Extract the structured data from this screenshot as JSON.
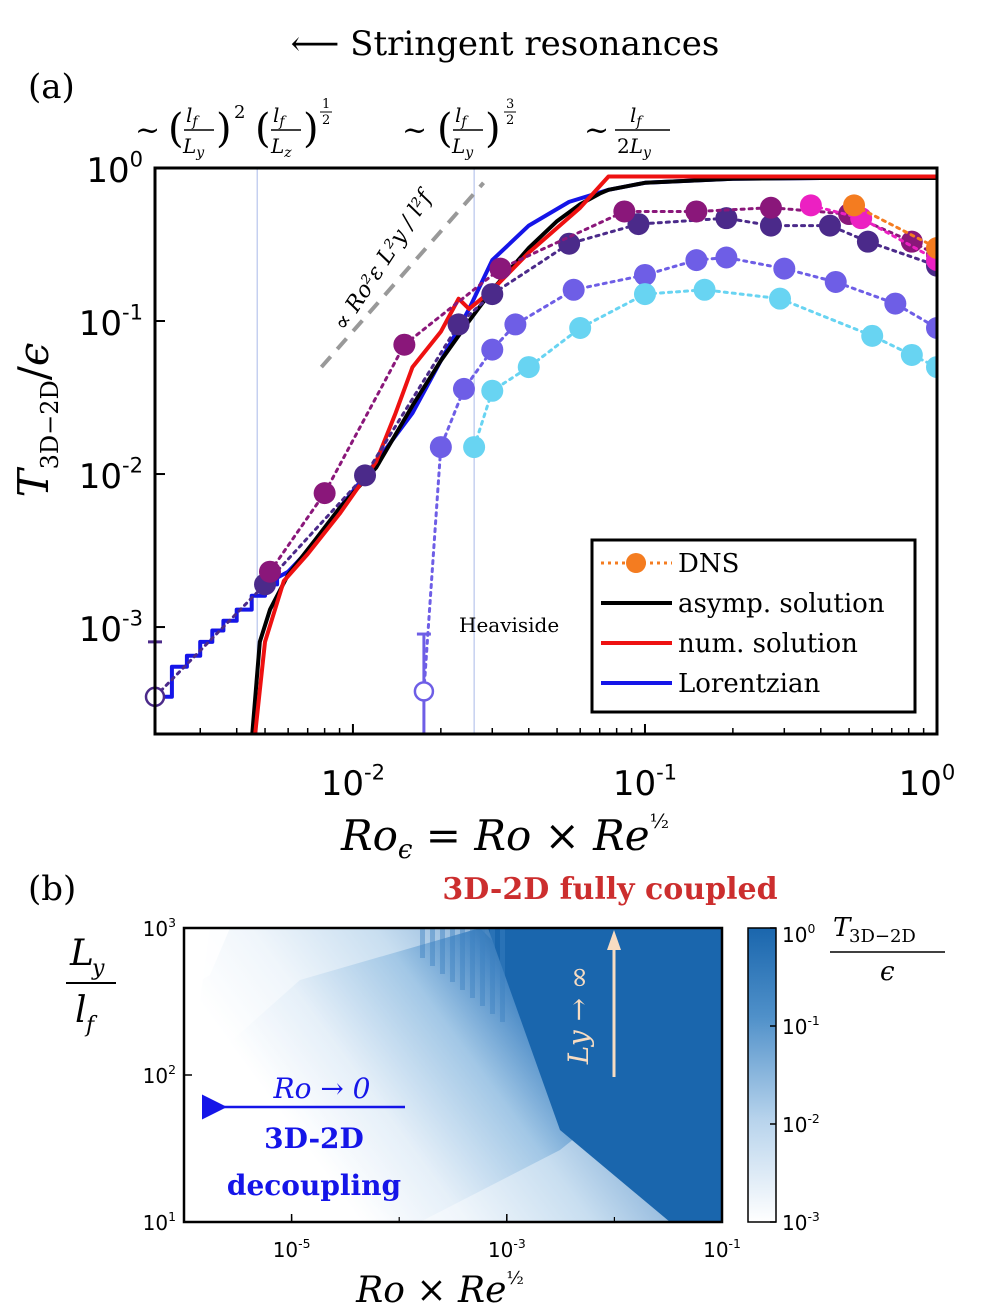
{
  "figure": {
    "header": "⟵ Stringent resonances",
    "panel_a_label": "(a)",
    "panel_b_label": "(b)",
    "scaling_annotations": [
      "~ (lf/Ly)² (lf/Lz)^½",
      "~ (lf/Ly)^3/2",
      "~ lf/2Ly"
    ]
  },
  "chart_data": [
    {
      "id": "a",
      "type": "line",
      "xlabel": "Roε = Ro × Re^½",
      "ylabel": "T3D−2D/ε",
      "xscale": "log",
      "yscale": "log",
      "xlim": [
        0.0021,
        1
      ],
      "ylim": [
        0.0002,
        1
      ],
      "x_ticks": [
        "10-2",
        "10-1",
        "100"
      ],
      "y_ticks": [
        "10-3",
        "10-2",
        "10-1",
        "100"
      ],
      "slope_label": "∝ Ro²ε L²y / l²f",
      "heaviside_label": "Heaviside",
      "legend_position": "lower-right",
      "legend": [
        {
          "label": "DNS",
          "color": "#f47c20",
          "style": "dotted-marker"
        },
        {
          "label": "asymp. solution",
          "color": "#000000",
          "style": "solid"
        },
        {
          "label": "num. solution",
          "color": "#ee1111",
          "style": "solid"
        },
        {
          "label": "Lorentzian",
          "color": "#1515e8",
          "style": "solid"
        }
      ],
      "vertical_lines": [
        0.0047,
        0.026
      ],
      "curves": [
        {
          "name": "Lorentzian",
          "color": "#1515e8",
          "points": [
            [
              0.0021,
              0.00035
            ],
            [
              0.0024,
              0.00035
            ],
            [
              0.0024,
              0.00055
            ],
            [
              0.0027,
              0.00055
            ],
            [
              0.0027,
              0.00065
            ],
            [
              0.003,
              0.00065
            ],
            [
              0.003,
              0.0008
            ],
            [
              0.0033,
              0.0008
            ],
            [
              0.0033,
              0.00095
            ],
            [
              0.0036,
              0.00095
            ],
            [
              0.0036,
              0.0011
            ],
            [
              0.004,
              0.0011
            ],
            [
              0.004,
              0.0013
            ],
            [
              0.0045,
              0.0013
            ],
            [
              0.0045,
              0.0016
            ],
            [
              0.005,
              0.0016
            ],
            [
              0.005,
              0.0019
            ],
            [
              0.0055,
              0.0019
            ],
            [
              0.0055,
              0.0021
            ],
            [
              0.006,
              0.0023
            ],
            [
              0.0075,
              0.0036
            ],
            [
              0.009,
              0.006
            ],
            [
              0.012,
              0.012
            ],
            [
              0.016,
              0.025
            ],
            [
              0.02,
              0.055
            ],
            [
              0.025,
              0.12
            ],
            [
              0.03,
              0.25
            ],
            [
              0.04,
              0.42
            ],
            [
              0.055,
              0.6
            ],
            [
              0.075,
              0.72
            ],
            [
              0.1,
              0.8
            ],
            [
              0.2,
              0.85
            ],
            [
              0.4,
              0.86
            ],
            [
              1,
              0.86
            ]
          ]
        },
        {
          "name": "asymp. solution",
          "color": "#000000",
          "points": [
            [
              0.0045,
              0.00018
            ],
            [
              0.0048,
              0.0008
            ],
            [
              0.0052,
              0.0013
            ],
            [
              0.006,
              0.0022
            ],
            [
              0.0075,
              0.0038
            ],
            [
              0.009,
              0.006
            ],
            [
              0.012,
              0.011
            ],
            [
              0.016,
              0.028
            ],
            [
              0.02,
              0.055
            ],
            [
              0.025,
              0.1
            ],
            [
              0.03,
              0.16
            ],
            [
              0.04,
              0.3
            ],
            [
              0.05,
              0.45
            ],
            [
              0.06,
              0.58
            ],
            [
              0.07,
              0.68
            ],
            [
              0.075,
              0.72
            ],
            [
              0.1,
              0.8
            ],
            [
              0.2,
              0.85
            ],
            [
              0.4,
              0.86
            ],
            [
              1,
              0.86
            ]
          ]
        },
        {
          "name": "num. solution",
          "color": "#ee1111",
          "points": [
            [
              0.0046,
              0.00018
            ],
            [
              0.005,
              0.0008
            ],
            [
              0.0058,
              0.002
            ],
            [
              0.007,
              0.003
            ],
            [
              0.009,
              0.0055
            ],
            [
              0.012,
              0.012
            ],
            [
              0.014,
              0.025
            ],
            [
              0.016,
              0.05
            ],
            [
              0.02,
              0.085
            ],
            [
              0.023,
              0.14
            ],
            [
              0.025,
              0.12
            ],
            [
              0.03,
              0.16
            ],
            [
              0.04,
              0.28
            ],
            [
              0.06,
              0.55
            ],
            [
              0.075,
              0.88
            ],
            [
              0.1,
              0.88
            ],
            [
              1,
              0.88
            ]
          ]
        },
        {
          "name": "slope guide",
          "color": "#999999",
          "dashed": true,
          "points": [
            [
              0.0078,
              0.05
            ],
            [
              0.028,
              0.8
            ]
          ]
        }
      ],
      "series": [
        {
          "name": "DNS",
          "color": "#4b2a8a",
          "points": [
            [
              0.0021,
              0.00035
            ],
            [
              0.005,
              0.0019
            ],
            [
              0.011,
              0.0098
            ],
            [
              0.023,
              0.095
            ],
            [
              0.03,
              0.15
            ],
            [
              0.055,
              0.32
            ],
            [
              0.095,
              0.43
            ],
            [
              0.19,
              0.47
            ],
            [
              0.27,
              0.42
            ],
            [
              0.43,
              0.42
            ],
            [
              0.58,
              0.33
            ],
            [
              1,
              0.23
            ]
          ],
          "error_bar": {
            "x": 0.0021,
            "y": 0.00035,
            "low": 0.00025,
            "high": 0.0008
          }
        },
        {
          "name": "DNS",
          "color": "#8a177a",
          "points": [
            [
              0.0052,
              0.0023
            ],
            [
              0.008,
              0.0075
            ],
            [
              0.015,
              0.07
            ],
            [
              0.032,
              0.22
            ],
            [
              0.085,
              0.52
            ],
            [
              0.15,
              0.52
            ],
            [
              0.27,
              0.55
            ],
            [
              0.5,
              0.5
            ],
            [
              0.82,
              0.33
            ],
            [
              1,
              0.27
            ]
          ]
        },
        {
          "name": "DNS",
          "color": "#ec20c2",
          "points": [
            [
              0.37,
              0.57
            ],
            [
              0.55,
              0.47
            ],
            [
              1,
              0.25
            ]
          ]
        },
        {
          "name": "DNS",
          "color": "#f47c20",
          "points": [
            [
              0.52,
              0.57
            ],
            [
              1,
              0.3
            ]
          ]
        },
        {
          "name": "DNS",
          "color": "#6e5ee6",
          "points": [
            [
              0.0175,
              0.00038
            ],
            [
              0.02,
              0.015
            ],
            [
              0.024,
              0.036
            ],
            [
              0.03,
              0.065
            ],
            [
              0.036,
              0.095
            ],
            [
              0.057,
              0.16
            ],
            [
              0.1,
              0.2
            ],
            [
              0.15,
              0.25
            ],
            [
              0.19,
              0.26
            ],
            [
              0.3,
              0.22
            ],
            [
              0.45,
              0.18
            ],
            [
              0.72,
              0.13
            ],
            [
              1,
              0.09
            ]
          ],
          "error_bar": {
            "x": 0.0175,
            "y": 0.00038,
            "low": 0.0002,
            "high": 0.0009
          }
        },
        {
          "name": "DNS",
          "color": "#68d4f2",
          "points": [
            [
              0.026,
              0.015
            ],
            [
              0.03,
              0.035
            ],
            [
              0.04,
              0.05
            ],
            [
              0.06,
              0.09
            ],
            [
              0.1,
              0.15
            ],
            [
              0.16,
              0.16
            ],
            [
              0.29,
              0.14
            ],
            [
              0.6,
              0.08
            ],
            [
              0.82,
              0.06
            ],
            [
              1,
              0.05
            ]
          ]
        }
      ]
    },
    {
      "id": "b",
      "type": "heatmap",
      "xlabel": "Ro × Re^½",
      "ylabel": "Ly/lf",
      "xscale": "log",
      "yscale": "log",
      "xlim": [
        1e-06,
        0.1
      ],
      "ylim": [
        10,
        1000
      ],
      "x_ticks": [
        "10-5",
        "10-3",
        "10-1"
      ],
      "y_ticks": [
        "101",
        "102",
        "103"
      ],
      "colorbar": {
        "title": "T3D−2D / ε",
        "ticks": [
          "100",
          "10-1",
          "10-2",
          "10-3"
        ],
        "colors": [
          "#ffffff",
          "#1a66ad"
        ]
      },
      "annotations": {
        "top": "3D-2D fully coupled",
        "left_arrow": "Ro → 0",
        "left_text": [
          "3D-2D",
          "decoupling"
        ],
        "arrow_up": "Ly → ∞"
      }
    }
  ]
}
